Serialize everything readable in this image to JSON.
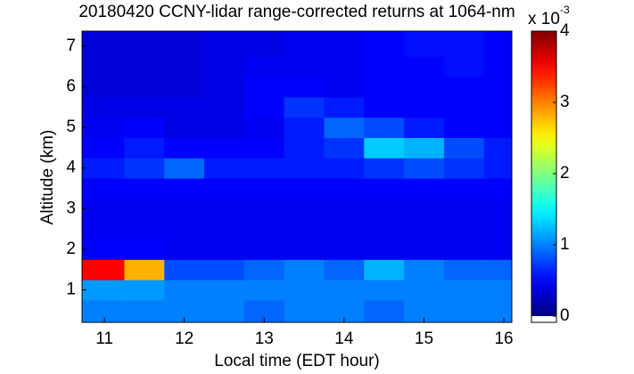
{
  "chart_data": {
    "type": "heatmap",
    "title": "20180420 CCNY-lidar range-corrected returns at 1064-nm",
    "x_label": "Local time (EDT hour)",
    "y_label": "Altitude (km)",
    "colorbar_scale": "x 10",
    "colorbar_exponent": "-3",
    "colormap": "jet",
    "x": [
      11,
      11.5,
      12,
      12.5,
      13,
      13.5,
      14,
      14.5,
      15,
      15.5,
      16
    ],
    "y": [
      0.5,
      1.0,
      1.5,
      2.0,
      2.5,
      3.0,
      3.5,
      4.0,
      4.5,
      5.0,
      5.5,
      6.0,
      6.5,
      7.0
    ],
    "z": [
      [
        1.0,
        1.0,
        1.0,
        1.0,
        0.9,
        1.0,
        1.0,
        0.9,
        1.0,
        1.0,
        1.0
      ],
      [
        1.1,
        1.1,
        1.0,
        1.0,
        1.0,
        1.0,
        1.0,
        1.0,
        1.0,
        1.0,
        1.0
      ],
      [
        3.5,
        2.8,
        0.8,
        0.8,
        0.9,
        1.0,
        0.9,
        1.2,
        1.0,
        0.9,
        0.9
      ],
      [
        0.5,
        0.5,
        0.45,
        0.45,
        0.45,
        0.45,
        0.45,
        0.45,
        0.45,
        0.45,
        0.45
      ],
      [
        0.45,
        0.45,
        0.45,
        0.45,
        0.45,
        0.45,
        0.45,
        0.45,
        0.45,
        0.45,
        0.45
      ],
      [
        0.45,
        0.45,
        0.45,
        0.45,
        0.45,
        0.45,
        0.45,
        0.45,
        0.45,
        0.45,
        0.45
      ],
      [
        0.5,
        0.5,
        0.5,
        0.5,
        0.5,
        0.5,
        0.5,
        0.5,
        0.5,
        0.5,
        0.5
      ],
      [
        0.6,
        0.7,
        0.9,
        0.6,
        0.6,
        0.6,
        0.6,
        0.7,
        0.8,
        0.7,
        0.6
      ],
      [
        0.5,
        0.6,
        0.5,
        0.5,
        0.5,
        0.6,
        0.7,
        1.3,
        1.2,
        0.8,
        0.6
      ],
      [
        0.45,
        0.5,
        0.4,
        0.4,
        0.45,
        0.6,
        0.9,
        0.8,
        0.6,
        0.5,
        0.5
      ],
      [
        0.4,
        0.4,
        0.4,
        0.4,
        0.5,
        0.7,
        0.6,
        0.5,
        0.5,
        0.5,
        0.5
      ],
      [
        0.35,
        0.35,
        0.35,
        0.4,
        0.5,
        0.5,
        0.45,
        0.5,
        0.5,
        0.5,
        0.5
      ],
      [
        0.35,
        0.35,
        0.35,
        0.4,
        0.45,
        0.45,
        0.45,
        0.5,
        0.5,
        0.55,
        0.5
      ],
      [
        0.35,
        0.35,
        0.35,
        0.4,
        0.4,
        0.45,
        0.45,
        0.5,
        0.55,
        0.55,
        0.5
      ]
    ],
    "xlim": [
      10.72,
      16.1
    ],
    "ylim": [
      0.2,
      7.37
    ],
    "xticks": [
      11,
      12,
      13,
      14,
      15,
      16
    ],
    "yticks": [
      1,
      2,
      3,
      4,
      5,
      6,
      7
    ],
    "clim": [
      0,
      4
    ],
    "cticks": [
      0,
      1,
      2,
      3,
      4
    ]
  }
}
